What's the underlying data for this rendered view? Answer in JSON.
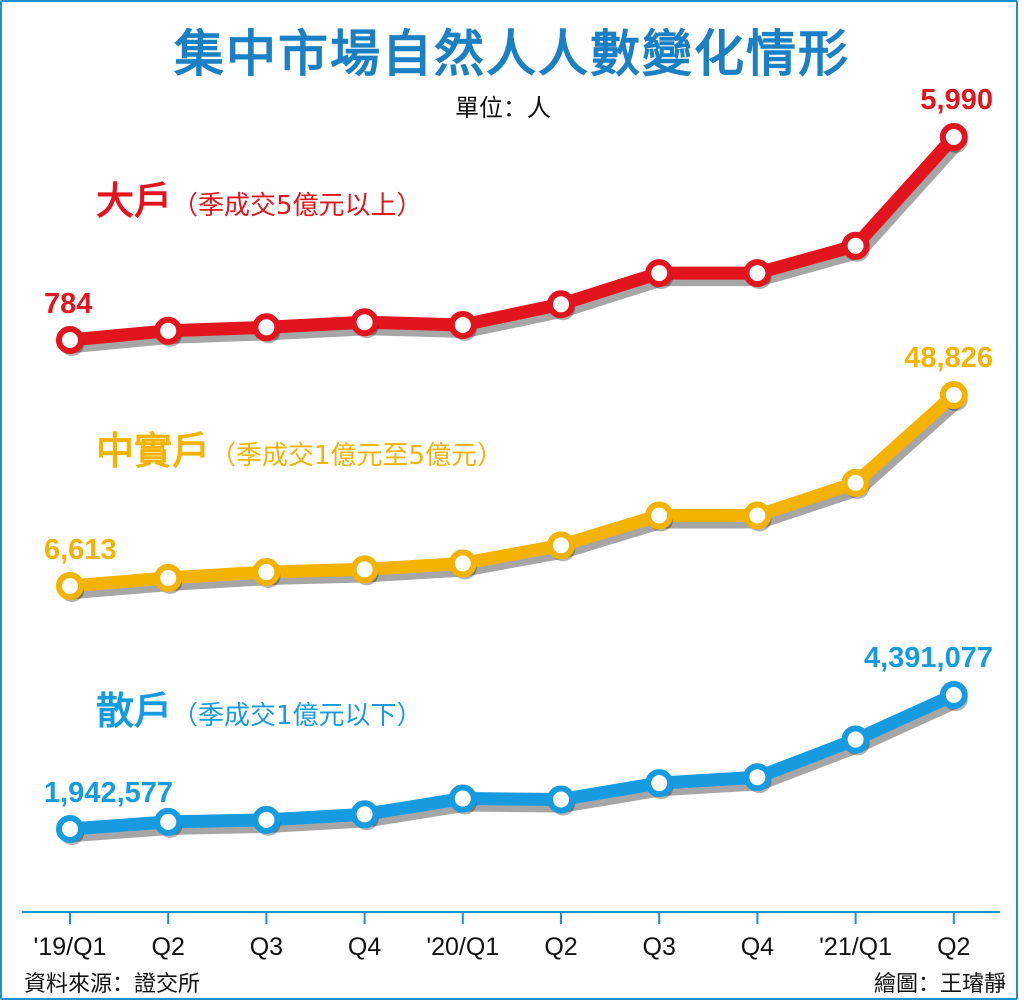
{
  "title": "集中市場自然人人數變化情形",
  "unit": "單位：人",
  "source": "資料來源：證交所",
  "credit": "繪圖：王璿靜",
  "chart_data": {
    "type": "line",
    "categories": [
      "'19/Q1",
      "Q2",
      "Q3",
      "Q4",
      "'20/Q1",
      "Q2",
      "Q3",
      "Q4",
      "'21/Q1",
      "Q2"
    ],
    "series": [
      {
        "name": "大戶",
        "note": "（季成交5億元以上）",
        "color": "#e2141d",
        "values": [
          784,
          1020,
          1110,
          1240,
          1170,
          1700,
          2500,
          2500,
          3200,
          5990
        ],
        "first_label": "784",
        "last_label": "5,990"
      },
      {
        "name": "中實戶",
        "note": "（季成交1億元至5億元）",
        "color": "#f4b300",
        "values": [
          6613,
          8400,
          9700,
          10300,
          11600,
          15600,
          22200,
          22200,
          29400,
          48826
        ],
        "first_label": "6,613",
        "last_label": "48,826"
      },
      {
        "name": "散戶",
        "note": "（季成交1億元以下）",
        "color": "#169be0",
        "values": [
          1942577,
          2073000,
          2110000,
          2211000,
          2499000,
          2482000,
          2781000,
          2889000,
          3577000,
          4391077
        ],
        "first_label": "1,942,577",
        "last_label": "4,391,077"
      }
    ]
  }
}
